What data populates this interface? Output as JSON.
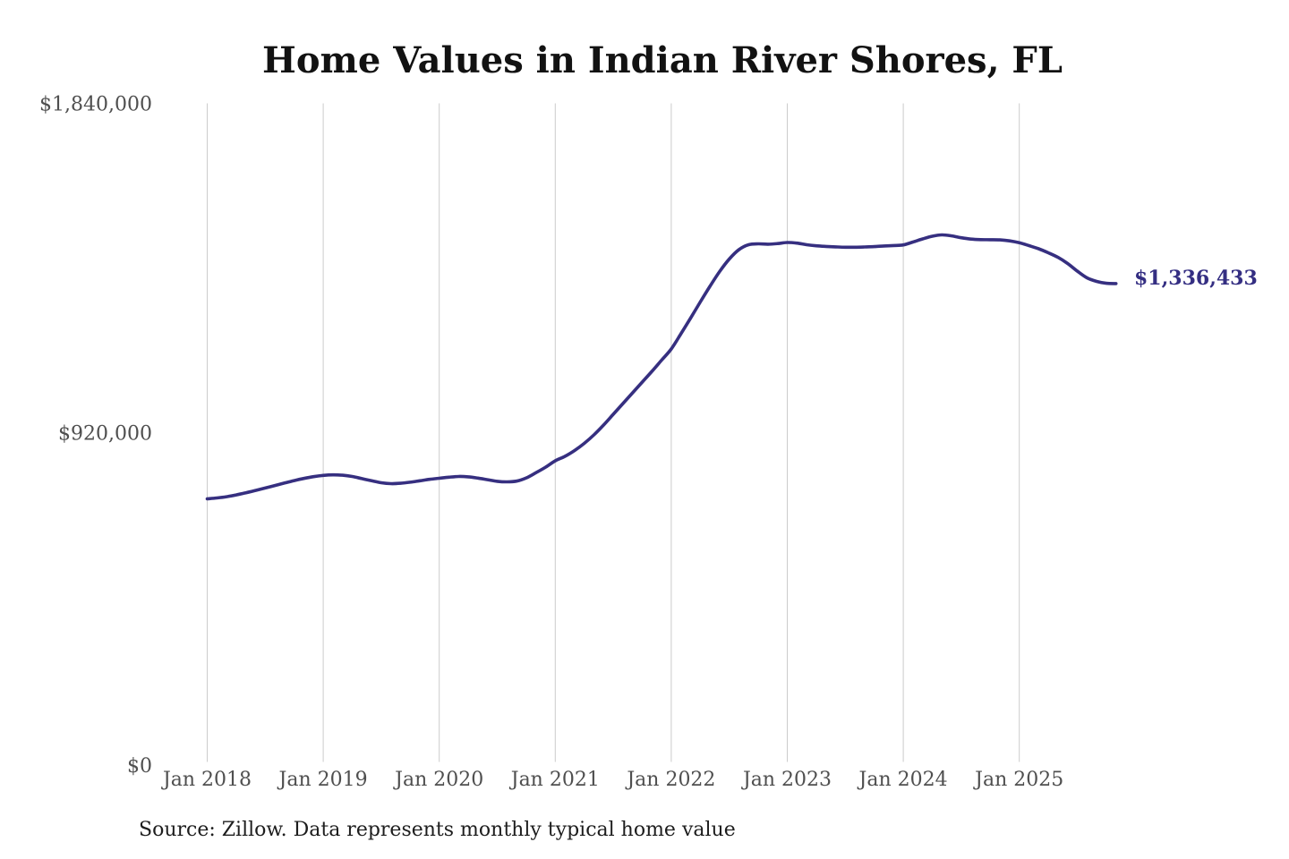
{
  "chart_data": {
    "type": "line",
    "title": "Home Values in Indian River Shores, FL",
    "source_note": "Source: Zillow. Data represents monthly typical home value",
    "xlabel": "",
    "ylabel": "",
    "ylim": [
      0,
      1840000
    ],
    "grid": "vertical-only",
    "legend": "none",
    "x_ticks": [
      "Jan 2018",
      "Jan 2019",
      "Jan 2020",
      "Jan 2021",
      "Jan 2022",
      "Jan 2023",
      "Jan 2024",
      "Jan 2025"
    ],
    "y_ticks": [
      {
        "label": "$0",
        "value": 0
      },
      {
        "label": "$920,000",
        "value": 920000
      },
      {
        "label": "$1,840,000",
        "value": 1840000
      }
    ],
    "colors": {
      "line": "#362f80",
      "end_label": "#342e82",
      "title": "#121212",
      "axis_label": "#4f4f4f",
      "source_note": "#1d1d1d",
      "gridline": "#cccccc",
      "background": "#ffffff"
    },
    "series": [
      {
        "name": "Typical home value",
        "end_label": "$1,336,433",
        "latest_value": 1336433,
        "months": [
          "2018-01",
          "2018-02",
          "2018-03",
          "2018-04",
          "2018-05",
          "2018-06",
          "2018-07",
          "2018-08",
          "2018-09",
          "2018-10",
          "2018-11",
          "2018-12",
          "2019-01",
          "2019-02",
          "2019-03",
          "2019-04",
          "2019-05",
          "2019-06",
          "2019-07",
          "2019-08",
          "2019-09",
          "2019-10",
          "2019-11",
          "2019-12",
          "2020-01",
          "2020-02",
          "2020-03",
          "2020-04",
          "2020-05",
          "2020-06",
          "2020-07",
          "2020-08",
          "2020-09",
          "2020-10",
          "2020-11",
          "2020-12",
          "2021-01",
          "2021-02",
          "2021-03",
          "2021-04",
          "2021-05",
          "2021-06",
          "2021-07",
          "2021-08",
          "2021-09",
          "2021-10",
          "2021-11",
          "2021-12",
          "2022-01",
          "2022-02",
          "2022-03",
          "2022-04",
          "2022-05",
          "2022-06",
          "2022-07",
          "2022-08",
          "2022-09",
          "2022-10",
          "2022-11",
          "2022-12",
          "2023-01",
          "2023-02",
          "2023-03",
          "2023-04",
          "2023-05",
          "2023-06",
          "2023-07",
          "2023-08",
          "2023-09",
          "2023-10",
          "2023-11",
          "2023-12",
          "2024-01",
          "2024-02",
          "2024-03",
          "2024-04",
          "2024-05",
          "2024-06",
          "2024-07",
          "2024-08",
          "2024-09",
          "2024-10",
          "2024-11",
          "2024-12",
          "2025-01",
          "2025-02",
          "2025-03",
          "2025-04",
          "2025-05",
          "2025-06",
          "2025-07",
          "2025-08",
          "2025-09",
          "2025-10",
          "2025-11"
        ],
        "values": [
          735000,
          737500,
          741000,
          746000,
          752000,
          758500,
          765250,
          772250,
          779250,
          786000,
          792000,
          797000,
          800500,
          802000,
          801000,
          797500,
          791500,
          785500,
          780000,
          777500,
          778500,
          781500,
          785500,
          789500,
          792500,
          795500,
          797500,
          796500,
          793000,
          788500,
          784000,
          782500,
          784500,
          793500,
          808000,
          823500,
          841250,
          853750,
          870000,
          890000,
          913750,
          941250,
          971250,
          1001250,
          1031250,
          1061250,
          1091250,
          1122500,
          1153750,
          1196250,
          1240000,
          1285000,
          1328750,
          1370000,
          1405000,
          1431250,
          1445000,
          1447500,
          1446500,
          1448250,
          1451250,
          1449500,
          1445000,
          1442000,
          1440250,
          1439000,
          1438000,
          1438000,
          1438750,
          1439750,
          1441500,
          1442750,
          1444500,
          1452500,
          1461250,
          1468750,
          1472500,
          1469750,
          1464500,
          1460750,
          1459250,
          1459000,
          1458500,
          1455750,
          1450500,
          1442500,
          1433750,
          1422500,
          1409750,
          1392500,
          1371250,
          1352500,
          1342500,
          1337250,
          1336433
        ]
      }
    ]
  }
}
